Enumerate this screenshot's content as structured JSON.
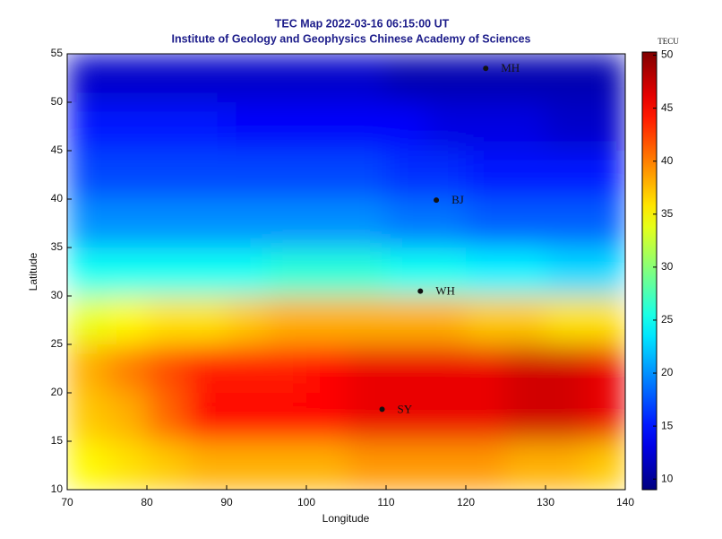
{
  "chart_data": {
    "type": "heatmap",
    "title": "TEC Map 2022-03-16 06:15:00 UT",
    "subtitle": "Institute of Geology and Geophysics Chinese Academy of Sciences",
    "x_label": "Longitude",
    "y_label": "Latitude",
    "colorbar_label": "TECU",
    "colormap": "jet",
    "x": [
      72.5,
      77.5,
      82.5,
      87.5,
      92.5,
      97.5,
      102.5,
      107.5,
      112.5,
      117.5,
      122.5,
      127.5,
      132.5,
      137.5
    ],
    "y": [
      52.5,
      47.5,
      42.5,
      37.5,
      32.5,
      27.5,
      22.5,
      17.5,
      12.5
    ],
    "z": [
      [
        12,
        12,
        12,
        12,
        12,
        12,
        12,
        12,
        11,
        11,
        11,
        11,
        11,
        11
      ],
      [
        15,
        15,
        15,
        15,
        14,
        14,
        14,
        14,
        14,
        13,
        13,
        13,
        12,
        12
      ],
      [
        17,
        17,
        17,
        17,
        17,
        17,
        17,
        17,
        16,
        16,
        15,
        15,
        15,
        15
      ],
      [
        20,
        20,
        20,
        20,
        20,
        20,
        20,
        20,
        19,
        19,
        18,
        18,
        18,
        18
      ],
      [
        25,
        25,
        25,
        25,
        25,
        26,
        26,
        26,
        25,
        25,
        24,
        24,
        23,
        23
      ],
      [
        34,
        35,
        36,
        36,
        37,
        38,
        38,
        38,
        38,
        38,
        37,
        37,
        36,
        36
      ],
      [
        38,
        40,
        42,
        44,
        44,
        44,
        45,
        46,
        46,
        46,
        46,
        47,
        47,
        46
      ],
      [
        37,
        38,
        41,
        45,
        45,
        45,
        45,
        46,
        46,
        46,
        46,
        47,
        47,
        46
      ],
      [
        35,
        36,
        37,
        38,
        38,
        38,
        38,
        39,
        39,
        39,
        39,
        38,
        38,
        37
      ]
    ],
    "stations": [
      {
        "name": "MH",
        "lon": 122.5,
        "lat": 53.5
      },
      {
        "name": "BJ",
        "lon": 116.3,
        "lat": 39.9
      },
      {
        "name": "WH",
        "lon": 114.3,
        "lat": 30.5
      },
      {
        "name": "SY",
        "lon": 109.5,
        "lat": 18.3
      }
    ],
    "xlim": [
      70,
      140
    ],
    "xticks": [
      70,
      80,
      90,
      100,
      110,
      120,
      130,
      140
    ],
    "ylim": [
      10,
      55
    ],
    "yticks": [
      10,
      15,
      20,
      25,
      30,
      35,
      40,
      45,
      50,
      55
    ],
    "clim": [
      9,
      50.3
    ],
    "cticks": [
      10,
      15,
      20,
      25,
      30,
      35,
      40,
      45,
      50
    ]
  }
}
